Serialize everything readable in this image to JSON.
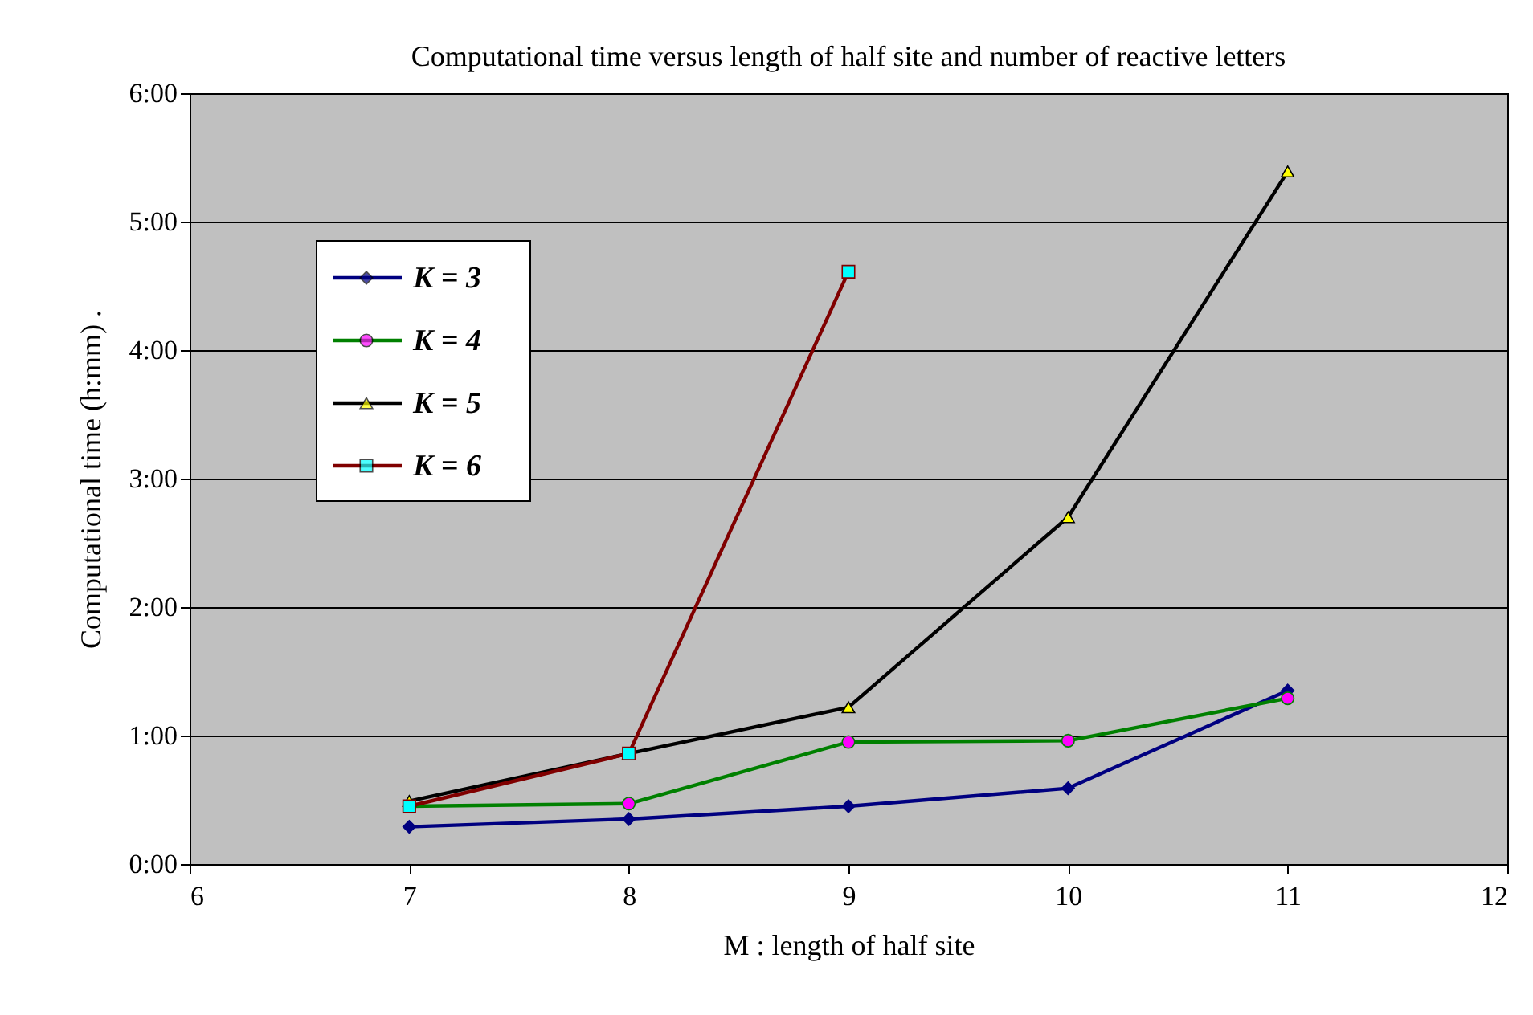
{
  "chart_data": {
    "type": "line",
    "title": "Computational time versus length of half site and number of reactive letters",
    "xlabel": "M : length of half site",
    "ylabel": "Computational time (h:mm) .",
    "x": [
      7,
      8,
      9,
      10,
      11
    ],
    "series": [
      {
        "name": "K = 3",
        "color": "#000080",
        "marker": "diamond",
        "values": [
          0.29,
          0.35,
          0.45,
          0.59,
          1.35
        ]
      },
      {
        "name": "K = 4",
        "color": "#008000",
        "marker": "circle",
        "values": [
          0.45,
          0.47,
          0.95,
          0.96,
          1.29
        ]
      },
      {
        "name": "K = 5",
        "color": "#000000",
        "marker": "triangle",
        "values": [
          0.49,
          0.86,
          1.22,
          2.7,
          5.39
        ]
      },
      {
        "name": "K = 6",
        "color": "#800000",
        "marker": "square",
        "values": [
          0.45,
          0.86,
          4.61,
          null,
          null
        ]
      }
    ],
    "xlim": [
      6,
      12
    ],
    "xticks": [
      6,
      7,
      8,
      9,
      10,
      11,
      12
    ],
    "ylim": [
      0,
      6
    ],
    "yticks": [
      {
        "value": 0,
        "label": "0:00"
      },
      {
        "value": 1,
        "label": "1:00"
      },
      {
        "value": 2,
        "label": "2:00"
      },
      {
        "value": 3,
        "label": "3:00"
      },
      {
        "value": 4,
        "label": "4:00"
      },
      {
        "value": 5,
        "label": "5:00"
      },
      {
        "value": 6,
        "label": "6:00"
      }
    ],
    "grid": "y",
    "legend": "top left"
  }
}
